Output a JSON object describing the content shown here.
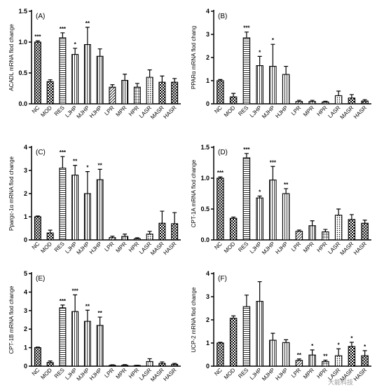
{
  "chart_data": [
    {
      "type": "bar",
      "panel": "(A)",
      "ylabel": "ACADL mRNA flod change",
      "categories": [
        "NC",
        "MOD",
        "RES",
        "LJHP",
        "MJHP",
        "HJHP",
        "LPR",
        "MPR",
        "HPR",
        "LASR",
        "MASR",
        "HASR"
      ],
      "ylim": [
        0,
        1.5
      ],
      "yticks": [
        "0.0",
        "0.5",
        "1.0",
        "1.5"
      ],
      "values": [
        1.0,
        0.36,
        1.07,
        0.8,
        0.96,
        0.77,
        0.27,
        0.38,
        0.27,
        0.43,
        0.35,
        0.35
      ],
      "errors": [
        0.02,
        0.03,
        0.08,
        0.1,
        0.28,
        0.12,
        0.04,
        0.1,
        0.06,
        0.12,
        0.1,
        0.06
      ],
      "significance": [
        "***",
        "",
        "***",
        "*",
        "**",
        "",
        "",
        "",
        "",
        "",
        "",
        ""
      ]
    },
    {
      "type": "bar",
      "panel": "(B)",
      "ylabel": "PPARα mRNA flod chang",
      "categories": [
        "NC",
        "MOD",
        "RES",
        "LJHP",
        "MJHP",
        "HJHP",
        "LPR",
        "MPR",
        "HPR",
        "LASR",
        "MASR",
        "HASR"
      ],
      "ylim": [
        0,
        4
      ],
      "yticks": [
        "0",
        "1",
        "2",
        "3",
        "4"
      ],
      "values": [
        1.0,
        0.3,
        2.85,
        1.65,
        1.62,
        1.27,
        0.1,
        0.1,
        0.08,
        0.35,
        0.25,
        0.12
      ],
      "errors": [
        0.05,
        0.15,
        0.25,
        0.4,
        0.95,
        0.35,
        0.05,
        0.05,
        0.03,
        0.2,
        0.15,
        0.06
      ],
      "significance": [
        "",
        "",
        "***",
        "*",
        "*",
        "",
        "",
        "",
        "",
        "",
        "",
        ""
      ]
    },
    {
      "type": "bar",
      "panel": "(C)",
      "ylabel": "Ppargc-1α mRNA flod change",
      "categories": [
        "NC",
        "MOD",
        "RES",
        "LJHP",
        "MJHP",
        "HJHP",
        "LPR",
        "MPR",
        "HPR",
        "LASR",
        "MASR",
        "HASR"
      ],
      "ylim": [
        0,
        4
      ],
      "yticks": [
        "0",
        "1",
        "2",
        "3",
        "4"
      ],
      "values": [
        1.0,
        0.3,
        3.1,
        2.8,
        2.0,
        2.6,
        0.1,
        0.15,
        0.05,
        0.25,
        0.72,
        0.7
      ],
      "errors": [
        0.03,
        0.12,
        0.5,
        0.42,
        0.95,
        0.45,
        0.06,
        0.1,
        0.04,
        0.12,
        0.52,
        0.48
      ],
      "significance": [
        "",
        "",
        "***",
        "**",
        "*",
        "**",
        "",
        "",
        "",
        "",
        "",
        ""
      ]
    },
    {
      "type": "bar",
      "panel": "(D)",
      "ylabel": "CPT-1A mRNA flod change",
      "categories": [
        "NC",
        "MOD",
        "RES",
        "LJHP",
        "MJHP",
        "HJHP",
        "LPR",
        "MPR",
        "HPR",
        "LASR",
        "MASR",
        "HASR"
      ],
      "ylim": [
        0,
        1.5
      ],
      "yticks": [
        "0.0",
        "0.5",
        "1.0",
        "1.5"
      ],
      "values": [
        1.0,
        0.35,
        1.33,
        0.68,
        0.97,
        0.75,
        0.14,
        0.23,
        0.13,
        0.4,
        0.33,
        0.27
      ],
      "errors": [
        0.02,
        0.02,
        0.07,
        0.03,
        0.22,
        0.08,
        0.02,
        0.08,
        0.04,
        0.1,
        0.08,
        0.05
      ],
      "significance": [
        "***",
        "",
        "***",
        "*",
        "***",
        "**",
        "",
        "",
        "",
        "",
        "",
        ""
      ]
    },
    {
      "type": "bar",
      "panel": "(E)",
      "ylabel": "CPT-1B mRNA flod change",
      "categories": [
        "NC",
        "MOD",
        "RES",
        "LJHP",
        "MJHP",
        "HJHP",
        "LPR",
        "MPR",
        "HPR",
        "LASR",
        "MASR",
        "HASR"
      ],
      "ylim": [
        0,
        5
      ],
      "yticks": [
        "0",
        "1",
        "2",
        "3",
        "4",
        "5"
      ],
      "values": [
        1.0,
        0.2,
        3.15,
        2.95,
        2.42,
        2.2,
        0.05,
        0.05,
        0.03,
        0.25,
        0.15,
        0.1
      ],
      "errors": [
        0.03,
        0.08,
        0.15,
        0.9,
        0.6,
        0.45,
        0.02,
        0.03,
        0.02,
        0.15,
        0.08,
        0.05
      ],
      "significance": [
        "",
        "",
        "***",
        "***",
        "**",
        "**",
        "",
        "",
        "",
        "",
        "",
        ""
      ]
    },
    {
      "type": "bar",
      "panel": "(F)",
      "ylabel": "UCP-2 mRNA flod change",
      "categories": [
        "NC",
        "MOD",
        "RES",
        "LJHP",
        "MJHP",
        "HJHP",
        "LPR",
        "MPR",
        "HPR",
        "LASR",
        "MASR",
        "HASR"
      ],
      "ylim": [
        0,
        4
      ],
      "yticks": [
        "0",
        "1",
        "2",
        "3",
        "4"
      ],
      "values": [
        1.0,
        2.07,
        2.57,
        2.8,
        1.12,
        1.02,
        0.25,
        0.48,
        0.2,
        0.45,
        0.85,
        0.45
      ],
      "errors": [
        0.03,
        0.1,
        0.5,
        0.85,
        0.3,
        0.12,
        0.06,
        0.22,
        0.06,
        0.3,
        0.18,
        0.22
      ],
      "significance": [
        "",
        "",
        "",
        "",
        "",
        "",
        "**",
        "*",
        "**",
        "*",
        "*",
        "*"
      ]
    }
  ],
  "watermark": "大能科技",
  "colors": {
    "bar_fill": "#ffffff",
    "bar_ink": "#000000"
  }
}
